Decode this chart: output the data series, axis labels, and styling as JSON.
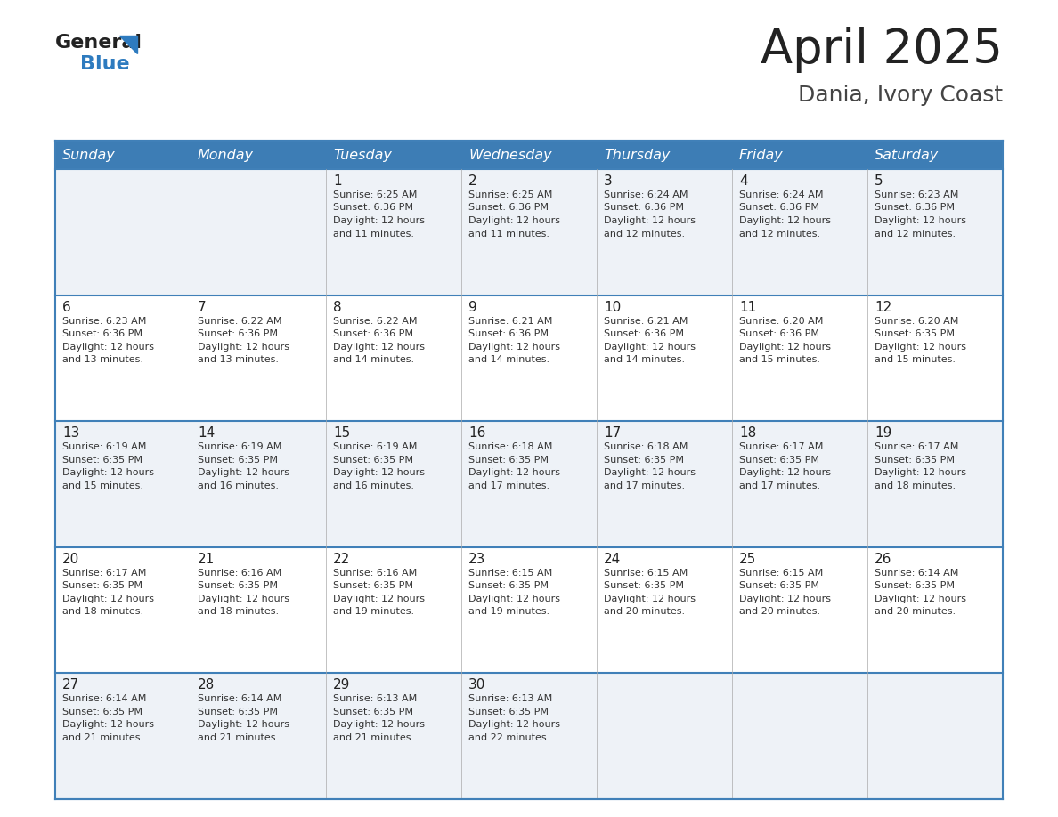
{
  "title": "April 2025",
  "subtitle": "Dania, Ivory Coast",
  "days_of_week": [
    "Sunday",
    "Monday",
    "Tuesday",
    "Wednesday",
    "Thursday",
    "Friday",
    "Saturday"
  ],
  "header_bg_color": "#3d7db5",
  "header_text_color": "#ffffff",
  "row_bg_even": "#eef2f7",
  "row_bg_odd": "#ffffff",
  "week_divider_color": "#4080b8",
  "title_color": "#222222",
  "subtitle_color": "#444444",
  "day_number_color": "#222222",
  "cell_text_color": "#333333",
  "logo_text_color": "#222222",
  "logo_blue_color": "#2e7bbf",
  "logo_triangle_color": "#2e7bbf",
  "weeks": [
    {
      "days": [
        {
          "day": null,
          "sunrise": null,
          "sunset": null,
          "daylight_hours": null,
          "daylight_minutes": null
        },
        {
          "day": null,
          "sunrise": null,
          "sunset": null,
          "daylight_hours": null,
          "daylight_minutes": null
        },
        {
          "day": 1,
          "sunrise": "6:25 AM",
          "sunset": "6:36 PM",
          "daylight_hours": 12,
          "daylight_minutes": 11
        },
        {
          "day": 2,
          "sunrise": "6:25 AM",
          "sunset": "6:36 PM",
          "daylight_hours": 12,
          "daylight_minutes": 11
        },
        {
          "day": 3,
          "sunrise": "6:24 AM",
          "sunset": "6:36 PM",
          "daylight_hours": 12,
          "daylight_minutes": 12
        },
        {
          "day": 4,
          "sunrise": "6:24 AM",
          "sunset": "6:36 PM",
          "daylight_hours": 12,
          "daylight_minutes": 12
        },
        {
          "day": 5,
          "sunrise": "6:23 AM",
          "sunset": "6:36 PM",
          "daylight_hours": 12,
          "daylight_minutes": 12
        }
      ]
    },
    {
      "days": [
        {
          "day": 6,
          "sunrise": "6:23 AM",
          "sunset": "6:36 PM",
          "daylight_hours": 12,
          "daylight_minutes": 13
        },
        {
          "day": 7,
          "sunrise": "6:22 AM",
          "sunset": "6:36 PM",
          "daylight_hours": 12,
          "daylight_minutes": 13
        },
        {
          "day": 8,
          "sunrise": "6:22 AM",
          "sunset": "6:36 PM",
          "daylight_hours": 12,
          "daylight_minutes": 14
        },
        {
          "day": 9,
          "sunrise": "6:21 AM",
          "sunset": "6:36 PM",
          "daylight_hours": 12,
          "daylight_minutes": 14
        },
        {
          "day": 10,
          "sunrise": "6:21 AM",
          "sunset": "6:36 PM",
          "daylight_hours": 12,
          "daylight_minutes": 14
        },
        {
          "day": 11,
          "sunrise": "6:20 AM",
          "sunset": "6:36 PM",
          "daylight_hours": 12,
          "daylight_minutes": 15
        },
        {
          "day": 12,
          "sunrise": "6:20 AM",
          "sunset": "6:35 PM",
          "daylight_hours": 12,
          "daylight_minutes": 15
        }
      ]
    },
    {
      "days": [
        {
          "day": 13,
          "sunrise": "6:19 AM",
          "sunset": "6:35 PM",
          "daylight_hours": 12,
          "daylight_minutes": 15
        },
        {
          "day": 14,
          "sunrise": "6:19 AM",
          "sunset": "6:35 PM",
          "daylight_hours": 12,
          "daylight_minutes": 16
        },
        {
          "day": 15,
          "sunrise": "6:19 AM",
          "sunset": "6:35 PM",
          "daylight_hours": 12,
          "daylight_minutes": 16
        },
        {
          "day": 16,
          "sunrise": "6:18 AM",
          "sunset": "6:35 PM",
          "daylight_hours": 12,
          "daylight_minutes": 17
        },
        {
          "day": 17,
          "sunrise": "6:18 AM",
          "sunset": "6:35 PM",
          "daylight_hours": 12,
          "daylight_minutes": 17
        },
        {
          "day": 18,
          "sunrise": "6:17 AM",
          "sunset": "6:35 PM",
          "daylight_hours": 12,
          "daylight_minutes": 17
        },
        {
          "day": 19,
          "sunrise": "6:17 AM",
          "sunset": "6:35 PM",
          "daylight_hours": 12,
          "daylight_minutes": 18
        }
      ]
    },
    {
      "days": [
        {
          "day": 20,
          "sunrise": "6:17 AM",
          "sunset": "6:35 PM",
          "daylight_hours": 12,
          "daylight_minutes": 18
        },
        {
          "day": 21,
          "sunrise": "6:16 AM",
          "sunset": "6:35 PM",
          "daylight_hours": 12,
          "daylight_minutes": 18
        },
        {
          "day": 22,
          "sunrise": "6:16 AM",
          "sunset": "6:35 PM",
          "daylight_hours": 12,
          "daylight_minutes": 19
        },
        {
          "day": 23,
          "sunrise": "6:15 AM",
          "sunset": "6:35 PM",
          "daylight_hours": 12,
          "daylight_minutes": 19
        },
        {
          "day": 24,
          "sunrise": "6:15 AM",
          "sunset": "6:35 PM",
          "daylight_hours": 12,
          "daylight_minutes": 20
        },
        {
          "day": 25,
          "sunrise": "6:15 AM",
          "sunset": "6:35 PM",
          "daylight_hours": 12,
          "daylight_minutes": 20
        },
        {
          "day": 26,
          "sunrise": "6:14 AM",
          "sunset": "6:35 PM",
          "daylight_hours": 12,
          "daylight_minutes": 20
        }
      ]
    },
    {
      "days": [
        {
          "day": 27,
          "sunrise": "6:14 AM",
          "sunset": "6:35 PM",
          "daylight_hours": 12,
          "daylight_minutes": 21
        },
        {
          "day": 28,
          "sunrise": "6:14 AM",
          "sunset": "6:35 PM",
          "daylight_hours": 12,
          "daylight_minutes": 21
        },
        {
          "day": 29,
          "sunrise": "6:13 AM",
          "sunset": "6:35 PM",
          "daylight_hours": 12,
          "daylight_minutes": 21
        },
        {
          "day": 30,
          "sunrise": "6:13 AM",
          "sunset": "6:35 PM",
          "daylight_hours": 12,
          "daylight_minutes": 22
        },
        {
          "day": null,
          "sunrise": null,
          "sunset": null,
          "daylight_hours": null,
          "daylight_minutes": null
        },
        {
          "day": null,
          "sunrise": null,
          "sunset": null,
          "daylight_hours": null,
          "daylight_minutes": null
        },
        {
          "day": null,
          "sunrise": null,
          "sunset": null,
          "daylight_hours": null,
          "daylight_minutes": null
        }
      ]
    }
  ],
  "fig_width": 11.88,
  "fig_height": 9.18,
  "dpi": 100
}
